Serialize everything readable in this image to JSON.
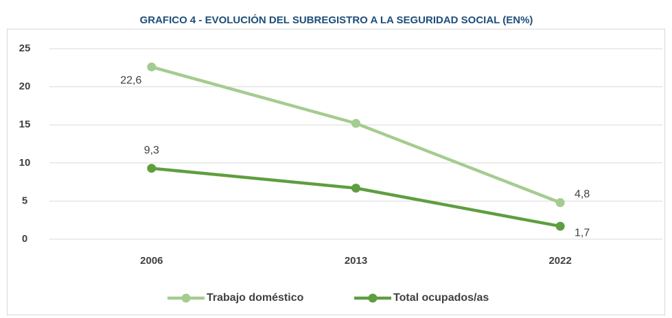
{
  "chart_data": {
    "type": "line",
    "title": "GRAFICO 4 - EVOLUCIÓN DEL SUBREGISTRO A LA SEGURIDAD SOCIAL (EN%)",
    "categories": [
      "2006",
      "2013",
      "2022"
    ],
    "series": [
      {
        "name": "Trabajo doméstico",
        "color": "#a4cc90",
        "values": [
          22.6,
          15.2,
          4.8
        ],
        "value_labels": [
          "22,6",
          null,
          "4,8"
        ]
      },
      {
        "name": "Total ocupados/as",
        "color": "#5f9e3f",
        "values": [
          9.3,
          6.7,
          1.7
        ],
        "value_labels": [
          "9,3",
          null,
          "1,7"
        ]
      }
    ],
    "ylim": [
      0,
      25
    ],
    "yticks": [
      0,
      5,
      10,
      15,
      20,
      25
    ],
    "grid": true,
    "legend": "bottom"
  }
}
